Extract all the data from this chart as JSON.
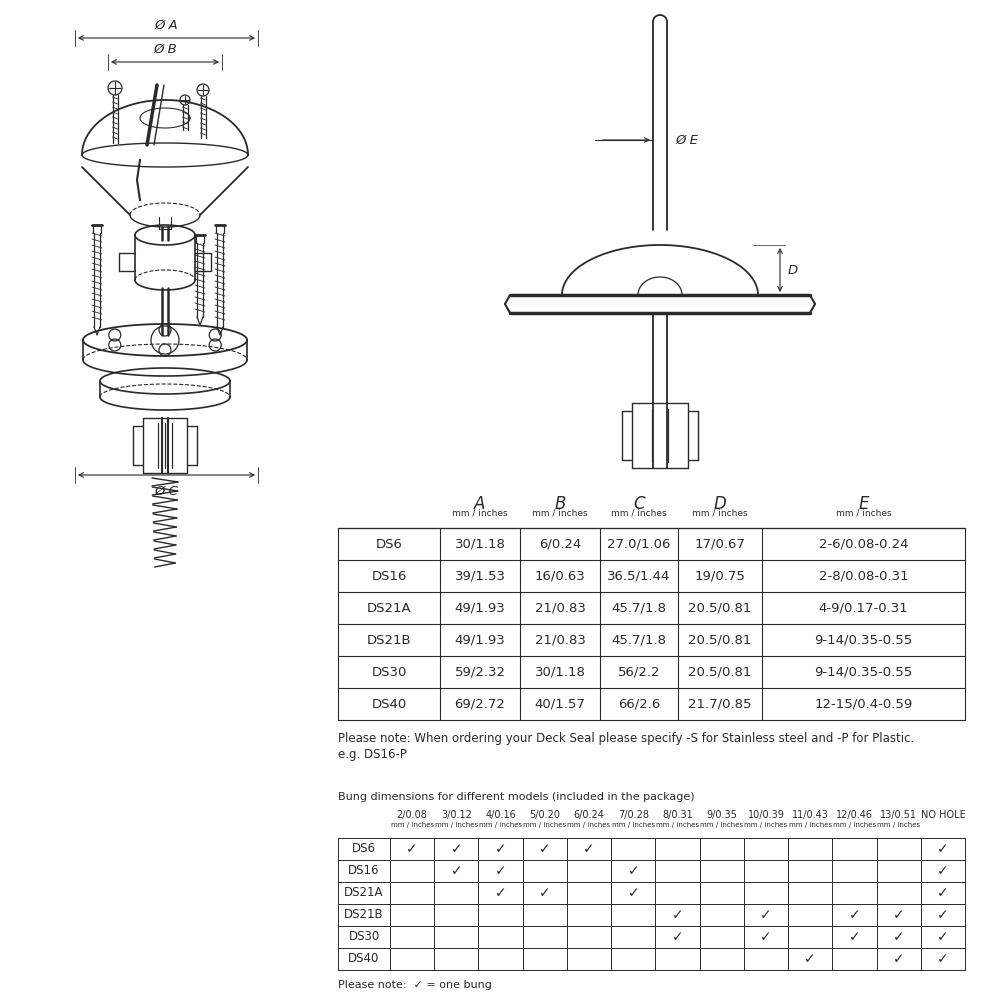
{
  "line_color": "#2a2a2a",
  "table1_rows": [
    [
      "DS6",
      "30/1.18",
      "6/0.24",
      "27.0/1.06",
      "17/0.67",
      "2-6/0.08-0.24"
    ],
    [
      "DS16",
      "39/1.53",
      "16/0.63",
      "36.5/1.44",
      "19/0.75",
      "2-8/0.08-0.31"
    ],
    [
      "DS21A",
      "49/1.93",
      "21/0.83",
      "45.7/1.8",
      "20.5/0.81",
      "4-9/0.17-0.31"
    ],
    [
      "DS21B",
      "49/1.93",
      "21/0.83",
      "45.7/1.8",
      "20.5/0.81",
      "9-14/0.35-0.55"
    ],
    [
      "DS30",
      "59/2.32",
      "30/1.18",
      "56/2.2",
      "20.5/0.81",
      "9-14/0.35-0.55"
    ],
    [
      "DS40",
      "69/2.72",
      "40/1.57",
      "66/2.6",
      "21.7/0.85",
      "12-15/0.4-0.59"
    ]
  ],
  "note1_line1": "Please note: When ordering your Deck Seal please specify -S for Stainless steel and -P for Plastic.",
  "note1_line2": "e.g. DS16-P",
  "bung_title": "Bung dimensions for different models (included in the package)",
  "bung_col_labels": [
    "2/0.08",
    "3/0.12",
    "4/0.16",
    "5/0.20",
    "6/0.24",
    "7/0.28",
    "8/0.31",
    "9/0.35",
    "10/0.39",
    "11/0.43",
    "12/0.46",
    "13/0.51",
    "NO HOLE"
  ],
  "bung_rows": [
    [
      1,
      1,
      1,
      1,
      1,
      0,
      0,
      0,
      0,
      0,
      0,
      0,
      1
    ],
    [
      0,
      1,
      1,
      0,
      0,
      1,
      0,
      0,
      0,
      0,
      0,
      0,
      1
    ],
    [
      0,
      0,
      1,
      1,
      0,
      1,
      0,
      0,
      0,
      0,
      0,
      0,
      1
    ],
    [
      0,
      0,
      0,
      0,
      0,
      0,
      1,
      0,
      1,
      0,
      1,
      1,
      1
    ],
    [
      0,
      0,
      0,
      0,
      0,
      0,
      1,
      0,
      1,
      0,
      1,
      1,
      1
    ],
    [
      0,
      0,
      0,
      0,
      0,
      0,
      0,
      0,
      0,
      1,
      0,
      1,
      1
    ]
  ],
  "bung_row_names": [
    "DS6",
    "DS16",
    "DS21A",
    "DS21B",
    "DS30",
    "DS40"
  ],
  "note2": "Please note:  ✓ = one bung",
  "col_headers": [
    "A",
    "B",
    "C",
    "D",
    "E"
  ],
  "col_subheaders": [
    "mm / inches",
    "mm / inches",
    "mm / inches",
    "mm / inches",
    "mm / inches"
  ]
}
